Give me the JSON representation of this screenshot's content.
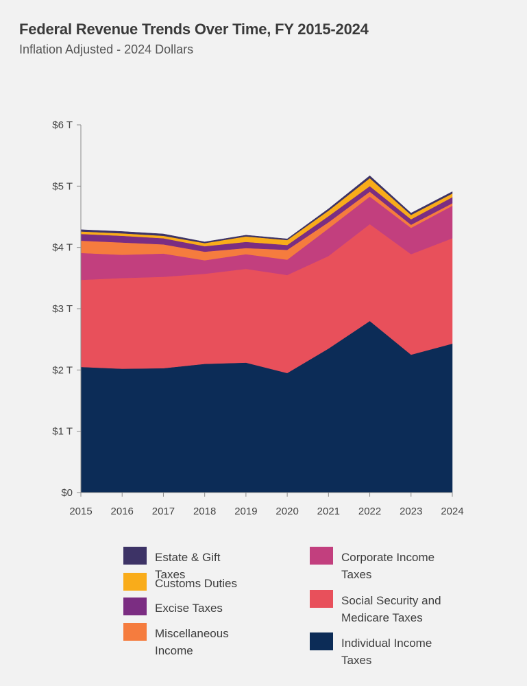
{
  "header": {
    "title": "Federal Revenue Trends Over Time, FY 2015-2024",
    "subtitle": "Inflation Adjusted - 2024 Dollars"
  },
  "chart_data": {
    "type": "area",
    "stacked": true,
    "title": "Federal Revenue Trends Over Time, FY 2015-2024",
    "subtitle": "Inflation Adjusted - 2024 Dollars",
    "x": [
      "2015",
      "2016",
      "2017",
      "2018",
      "2019",
      "2020",
      "2021",
      "2022",
      "2023",
      "2024"
    ],
    "y_ticks": [
      {
        "value": 0,
        "label": "$0"
      },
      {
        "value": 1,
        "label": "$1 T"
      },
      {
        "value": 2,
        "label": "$2 T"
      },
      {
        "value": 3,
        "label": "$3 T"
      },
      {
        "value": 4,
        "label": "$4 T"
      },
      {
        "value": 5,
        "label": "$5 T"
      },
      {
        "value": 6,
        "label": "$6 T"
      }
    ],
    "ylim": [
      0,
      6
    ],
    "y_unit": "Trillions of 2024 dollars",
    "grid": false,
    "series": [
      {
        "name": "Individual Income Taxes",
        "color": "#0c2c57",
        "values": [
          2.05,
          2.02,
          2.03,
          2.1,
          2.12,
          1.95,
          2.35,
          2.8,
          2.25,
          2.43
        ]
      },
      {
        "name": "Social Security and Medicare Taxes",
        "color": "#e8505b",
        "values": [
          1.42,
          1.48,
          1.49,
          1.47,
          1.53,
          1.6,
          1.51,
          1.58,
          1.64,
          1.72
        ]
      },
      {
        "name": "Corporate Income Taxes",
        "color": "#c23f7e",
        "values": [
          0.44,
          0.38,
          0.38,
          0.22,
          0.24,
          0.25,
          0.45,
          0.45,
          0.43,
          0.53
        ]
      },
      {
        "name": "Miscellaneous Income",
        "color": "#f57c3e",
        "values": [
          0.2,
          0.2,
          0.15,
          0.14,
          0.1,
          0.16,
          0.1,
          0.08,
          0.05,
          0.04
        ]
      },
      {
        "name": "Excise Taxes",
        "color": "#7b2d82",
        "values": [
          0.11,
          0.11,
          0.1,
          0.09,
          0.1,
          0.08,
          0.1,
          0.09,
          0.09,
          0.1
        ]
      },
      {
        "name": "Customs Duties",
        "color": "#f9ac1a",
        "values": [
          0.04,
          0.04,
          0.04,
          0.05,
          0.09,
          0.08,
          0.09,
          0.13,
          0.07,
          0.06
        ]
      },
      {
        "name": "Estate & Gift Taxes",
        "color": "#3d3366",
        "values": [
          0.03,
          0.03,
          0.03,
          0.02,
          0.02,
          0.02,
          0.03,
          0.04,
          0.03,
          0.03
        ]
      }
    ],
    "legend": {
      "position": "bottom",
      "left_column": [
        {
          "label": "Estate & Gift Taxes",
          "color": "#3d3366"
        },
        {
          "label": "Customs Duties",
          "color": "#f9ac1a"
        },
        {
          "label": "Excise Taxes",
          "color": "#7b2d82"
        },
        {
          "label": "Miscellaneous Income",
          "color": "#f57c3e"
        }
      ],
      "right_column": [
        {
          "label": "Corporate Income Taxes",
          "color": "#c23f7e"
        },
        {
          "label": "Social Security and Medicare Taxes",
          "color": "#e8505b"
        },
        {
          "label": "Individual Income Taxes",
          "color": "#0c2c57"
        }
      ]
    }
  }
}
